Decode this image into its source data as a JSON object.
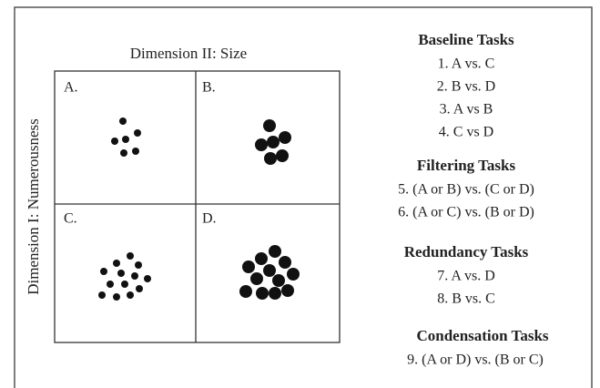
{
  "diagram": {
    "title": "Dimension II: Size",
    "y_label": "Dimension I: Numerousness",
    "quadrants": [
      "A.",
      "B.",
      "C.",
      "D."
    ],
    "sections": [
      {
        "heading": "Baseline Tasks",
        "items": [
          "1. A vs. C",
          "2. B vs. D",
          "3. A vs B",
          "4. C vs D"
        ]
      },
      {
        "heading": "Filtering Tasks",
        "items": [
          "5. (A or B) vs. (C or D)",
          "6. (A or C) vs. (B or D)"
        ]
      },
      {
        "heading": "Redundancy Tasks",
        "items": [
          "7. A vs. D",
          "8. B vs. C"
        ]
      },
      {
        "heading": "Condensation Tasks",
        "items": [
          "9. (A or D) vs. (B or C)"
        ]
      }
    ]
  }
}
